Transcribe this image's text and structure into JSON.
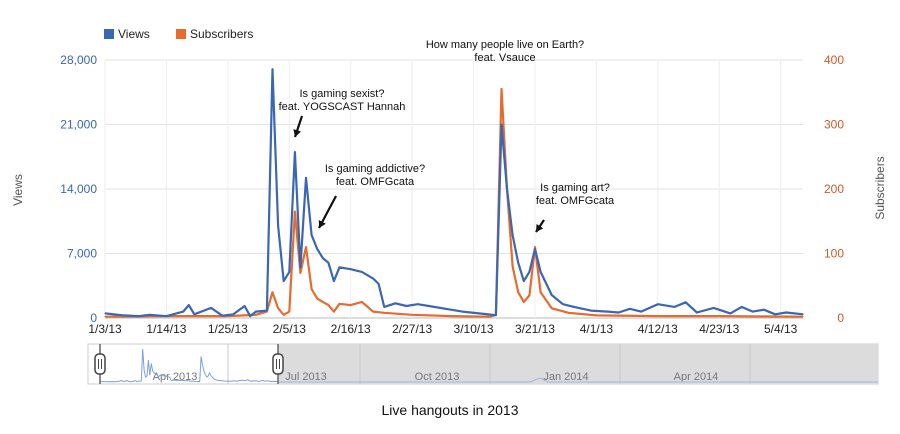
{
  "chart_data": {
    "type": "line",
    "caption": "Live hangouts in 2013",
    "legend": {
      "position": "top-left",
      "items": [
        "Views",
        "Subscribers"
      ]
    },
    "left_axis": {
      "label": "Views",
      "ticks": [
        "0",
        "7,000",
        "14,000",
        "21,000",
        "28,000"
      ],
      "ylim": [
        0,
        28000
      ]
    },
    "right_axis": {
      "label": "Subscribers",
      "ticks": [
        "0",
        "100",
        "200",
        "300",
        "400"
      ],
      "ylim": [
        0,
        400
      ]
    },
    "x_ticks": [
      "1/3/13",
      "1/14/13",
      "1/25/13",
      "2/5/13",
      "2/16/13",
      "2/27/13",
      "3/10/13",
      "3/21/13",
      "4/1/13",
      "4/12/13",
      "4/23/13",
      "5/4/13"
    ],
    "x_range": [
      "2013-01-03",
      "2013-05-08"
    ],
    "grid": true,
    "series": [
      {
        "name": "Views",
        "color": "#3a67b4",
        "axis": "left",
        "points": [
          [
            "2013-01-03",
            500
          ],
          [
            "2013-01-06",
            300
          ],
          [
            "2013-01-09",
            200
          ],
          [
            "2013-01-11",
            350
          ],
          [
            "2013-01-14",
            200
          ],
          [
            "2013-01-17",
            700
          ],
          [
            "2013-01-18",
            1400
          ],
          [
            "2013-01-19",
            400
          ],
          [
            "2013-01-22",
            1100
          ],
          [
            "2013-01-24",
            250
          ],
          [
            "2013-01-26",
            400
          ],
          [
            "2013-01-28",
            1300
          ],
          [
            "2013-01-29",
            200
          ],
          [
            "2013-01-30",
            700
          ],
          [
            "2013-02-01",
            800
          ],
          [
            "2013-02-02",
            27000
          ],
          [
            "2013-02-03",
            10000
          ],
          [
            "2013-02-04",
            4000
          ],
          [
            "2013-02-05",
            5000
          ],
          [
            "2013-02-06",
            18000
          ],
          [
            "2013-02-07",
            5500
          ],
          [
            "2013-02-08",
            15200
          ],
          [
            "2013-02-09",
            9000
          ],
          [
            "2013-02-10",
            7500
          ],
          [
            "2013-02-11",
            6500
          ],
          [
            "2013-02-12",
            6000
          ],
          [
            "2013-02-13",
            4000
          ],
          [
            "2013-02-14",
            5500
          ],
          [
            "2013-02-16",
            5300
          ],
          [
            "2013-02-18",
            5000
          ],
          [
            "2013-02-20",
            4300
          ],
          [
            "2013-02-21",
            3700
          ],
          [
            "2013-02-22",
            1200
          ],
          [
            "2013-02-24",
            1600
          ],
          [
            "2013-02-26",
            1300
          ],
          [
            "2013-02-28",
            1500
          ],
          [
            "2013-03-02",
            1300
          ],
          [
            "2013-03-05",
            1000
          ],
          [
            "2013-03-08",
            700
          ],
          [
            "2013-03-11",
            500
          ],
          [
            "2013-03-14",
            300
          ],
          [
            "2013-03-15",
            21000
          ],
          [
            "2013-03-16",
            14000
          ],
          [
            "2013-03-17",
            9000
          ],
          [
            "2013-03-18",
            6000
          ],
          [
            "2013-03-19",
            4000
          ],
          [
            "2013-03-20",
            5000
          ],
          [
            "2013-03-21",
            7500
          ],
          [
            "2013-03-22",
            5000
          ],
          [
            "2013-03-24",
            2500
          ],
          [
            "2013-03-26",
            1500
          ],
          [
            "2013-03-28",
            1200
          ],
          [
            "2013-03-31",
            800
          ],
          [
            "2013-04-03",
            700
          ],
          [
            "2013-04-05",
            600
          ],
          [
            "2013-04-07",
            1000
          ],
          [
            "2013-04-09",
            700
          ],
          [
            "2013-04-12",
            1500
          ],
          [
            "2013-04-15",
            1200
          ],
          [
            "2013-04-17",
            1700
          ],
          [
            "2013-04-19",
            600
          ],
          [
            "2013-04-22",
            1100
          ],
          [
            "2013-04-25",
            500
          ],
          [
            "2013-04-27",
            1200
          ],
          [
            "2013-04-29",
            700
          ],
          [
            "2013-05-01",
            900
          ],
          [
            "2013-05-03",
            400
          ],
          [
            "2013-05-05",
            600
          ],
          [
            "2013-05-08",
            400
          ]
        ]
      },
      {
        "name": "Subscribers",
        "color": "#e56b2e",
        "axis": "right",
        "points": [
          [
            "2013-01-03",
            2
          ],
          [
            "2013-01-14",
            3
          ],
          [
            "2013-01-25",
            3
          ],
          [
            "2013-01-30",
            5
          ],
          [
            "2013-02-01",
            10
          ],
          [
            "2013-02-02",
            40
          ],
          [
            "2013-02-03",
            15
          ],
          [
            "2013-02-04",
            5
          ],
          [
            "2013-02-05",
            10
          ],
          [
            "2013-02-06",
            165
          ],
          [
            "2013-02-07",
            70
          ],
          [
            "2013-02-08",
            110
          ],
          [
            "2013-02-09",
            45
          ],
          [
            "2013-02-10",
            30
          ],
          [
            "2013-02-11",
            25
          ],
          [
            "2013-02-12",
            20
          ],
          [
            "2013-02-13",
            10
          ],
          [
            "2013-02-14",
            22
          ],
          [
            "2013-02-16",
            20
          ],
          [
            "2013-02-18",
            25
          ],
          [
            "2013-02-20",
            10
          ],
          [
            "2013-02-22",
            8
          ],
          [
            "2013-02-27",
            5
          ],
          [
            "2013-03-06",
            3
          ],
          [
            "2013-03-13",
            2
          ],
          [
            "2013-03-14",
            5
          ],
          [
            "2013-03-15",
            355
          ],
          [
            "2013-03-16",
            200
          ],
          [
            "2013-03-17",
            80
          ],
          [
            "2013-03-18",
            40
          ],
          [
            "2013-03-19",
            25
          ],
          [
            "2013-03-20",
            35
          ],
          [
            "2013-03-21",
            110
          ],
          [
            "2013-03-22",
            40
          ],
          [
            "2013-03-24",
            15
          ],
          [
            "2013-03-27",
            8
          ],
          [
            "2013-04-01",
            4
          ],
          [
            "2013-04-12",
            3
          ],
          [
            "2013-04-23",
            3
          ],
          [
            "2013-05-08",
            2
          ]
        ]
      }
    ],
    "annotations": [
      {
        "lines": [
          "Is gaming sexist?",
          "feat. YOGSCAST Hannah"
        ],
        "target": [
          "2013-02-06",
          18000
        ]
      },
      {
        "lines": [
          "Is gaming addictive?",
          "feat. OMFGcata"
        ],
        "target": [
          "2013-02-10",
          7500
        ]
      },
      {
        "lines": [
          "How many people live on Earth?",
          "feat. Vsauce"
        ],
        "target": [
          "2013-03-15",
          355
        ]
      },
      {
        "lines": [
          "Is gaming art?",
          "feat. OMFGcata"
        ],
        "target": [
          "2013-03-21",
          7500
        ]
      }
    ],
    "navigator": {
      "labels": [
        "Apr 2013",
        "Jul 2013",
        "Oct 2013",
        "Jan 2014",
        "Apr 2014"
      ]
    }
  }
}
